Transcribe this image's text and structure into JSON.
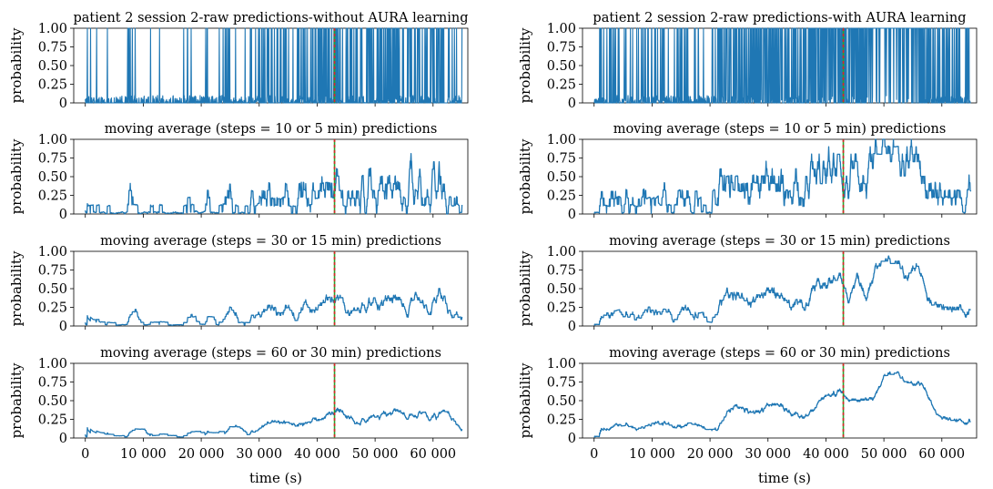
{
  "figure": {
    "xlabel": "time (s)",
    "ylabel": "probability",
    "x_ticks": [
      0,
      10000,
      20000,
      30000,
      40000,
      50000,
      60000
    ],
    "x_tick_labels": [
      "0",
      "10 000",
      "20 000",
      "30 000",
      "40 000",
      "50 000",
      "60 000"
    ],
    "y_ticks": [
      0,
      0.25,
      0.5,
      0.75,
      1.0
    ],
    "y_tick_labels": [
      "0",
      "0.25",
      "0.50",
      "0.75",
      "1.00"
    ],
    "line_color": "#1f77b4",
    "marker_line_colors": [
      "#2ca02c",
      "#d62728"
    ],
    "marker_line_x": 43000
  },
  "chart_data": [
    {
      "id": "L0",
      "type": "line",
      "column": "left",
      "row": 0,
      "title": "patient 2 session 2-raw predictions-without AURA learning",
      "xlim": [
        -2000,
        66000
      ],
      "ylim": [
        0,
        1
      ],
      "grid": false,
      "kind": "raw",
      "aura": false,
      "seed": 11
    },
    {
      "id": "L1",
      "type": "line",
      "column": "left",
      "row": 1,
      "title": "moving average (steps = 10 or 5 min) predictions",
      "xlim": [
        -2000,
        66000
      ],
      "ylim": [
        0,
        1
      ],
      "grid": false,
      "kind": "ma10",
      "aura": false,
      "seed": 12
    },
    {
      "id": "L2",
      "type": "line",
      "column": "left",
      "row": 2,
      "title": "moving average (steps = 30 or 15 min) predictions",
      "xlim": [
        -2000,
        66000
      ],
      "ylim": [
        0,
        1
      ],
      "grid": false,
      "kind": "ma30",
      "aura": false,
      "seed": 13
    },
    {
      "id": "L3",
      "type": "line",
      "column": "left",
      "row": 3,
      "title": "moving average (steps = 60 or 30 min) predictions",
      "xlim": [
        -2000,
        66000
      ],
      "ylim": [
        0,
        1
      ],
      "grid": false,
      "kind": "ma60",
      "aura": false,
      "seed": 14
    },
    {
      "id": "R0",
      "type": "line",
      "column": "right",
      "row": 0,
      "title": "patient 2 session 2-raw predictions-with AURA learning",
      "xlim": [
        -2000,
        66000
      ],
      "ylim": [
        0,
        1
      ],
      "grid": false,
      "kind": "raw",
      "aura": true,
      "seed": 21
    },
    {
      "id": "R1",
      "type": "line",
      "column": "right",
      "row": 1,
      "title": "moving average (steps = 10 or 5 min) predictions",
      "xlim": [
        -2000,
        66000
      ],
      "ylim": [
        0,
        1
      ],
      "grid": false,
      "kind": "ma10",
      "aura": true,
      "seed": 22
    },
    {
      "id": "R2",
      "type": "line",
      "column": "right",
      "row": 2,
      "title": "moving average (steps = 30 or 15 min) predictions",
      "xlim": [
        -2000,
        66000
      ],
      "ylim": [
        0,
        1
      ],
      "grid": false,
      "kind": "ma30",
      "aura": true,
      "seed": 23
    },
    {
      "id": "R3",
      "type": "line",
      "column": "right",
      "row": 3,
      "title": "moving average (steps = 60 or 30 min) predictions",
      "xlim": [
        -2000,
        66000
      ],
      "ylim": [
        0,
        1
      ],
      "grid": false,
      "kind": "ma60",
      "aura": true,
      "seed": 24
    }
  ]
}
